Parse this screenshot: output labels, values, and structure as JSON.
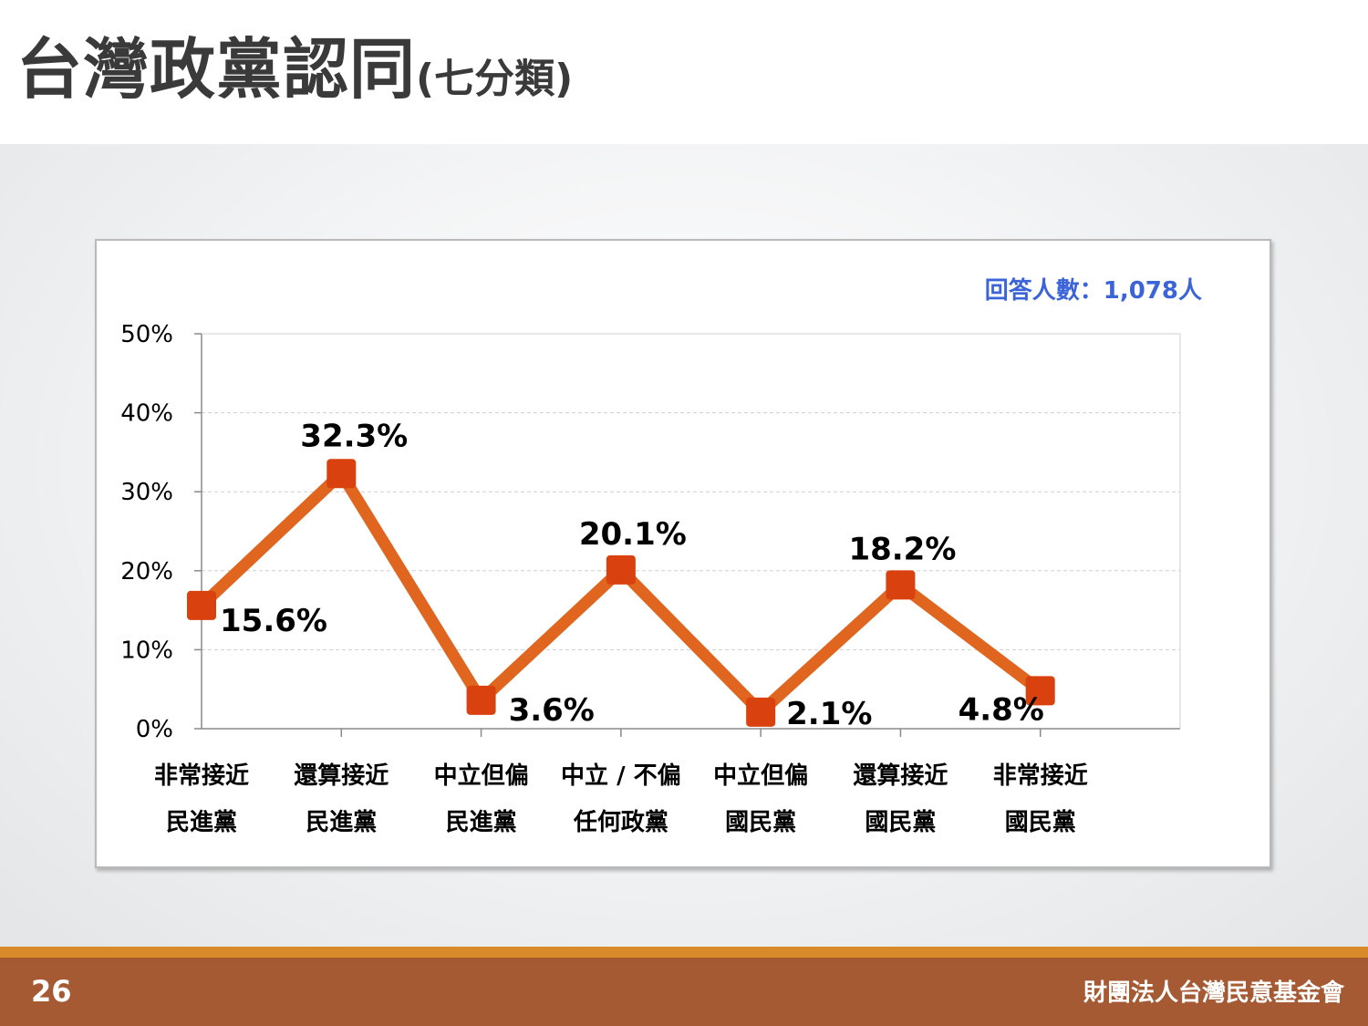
{
  "header": {
    "title_main": "台灣政黨認同",
    "title_sub": "(七分類)"
  },
  "footer": {
    "page_number": "26",
    "organization": "財團法人台灣民意基金會"
  },
  "chart_data": {
    "type": "line",
    "respondents_note": "回答人數：1,078人",
    "categories": [
      [
        "非常接近",
        "民進黨"
      ],
      [
        "還算接近",
        "民進黨"
      ],
      [
        "中立但偏",
        "民進黨"
      ],
      [
        "中立 / 不偏",
        "任何政黨"
      ],
      [
        "中立但偏",
        "國民黨"
      ],
      [
        "還算接近",
        "國民黨"
      ],
      [
        "非常接近",
        "國民黨"
      ]
    ],
    "values": [
      15.6,
      32.3,
      3.6,
      20.1,
      2.1,
      18.2,
      4.8
    ],
    "value_labels": [
      "15.6%",
      "32.3%",
      "3.6%",
      "20.1%",
      "2.1%",
      "18.2%",
      "4.8%"
    ],
    "y_ticks": [
      "0%",
      "10%",
      "20%",
      "30%",
      "40%",
      "50%"
    ],
    "ylim": [
      0,
      50
    ],
    "grid": true,
    "colors": {
      "line": "#e0661f",
      "marker": "#d9420f",
      "note": "#3a64d8"
    }
  }
}
